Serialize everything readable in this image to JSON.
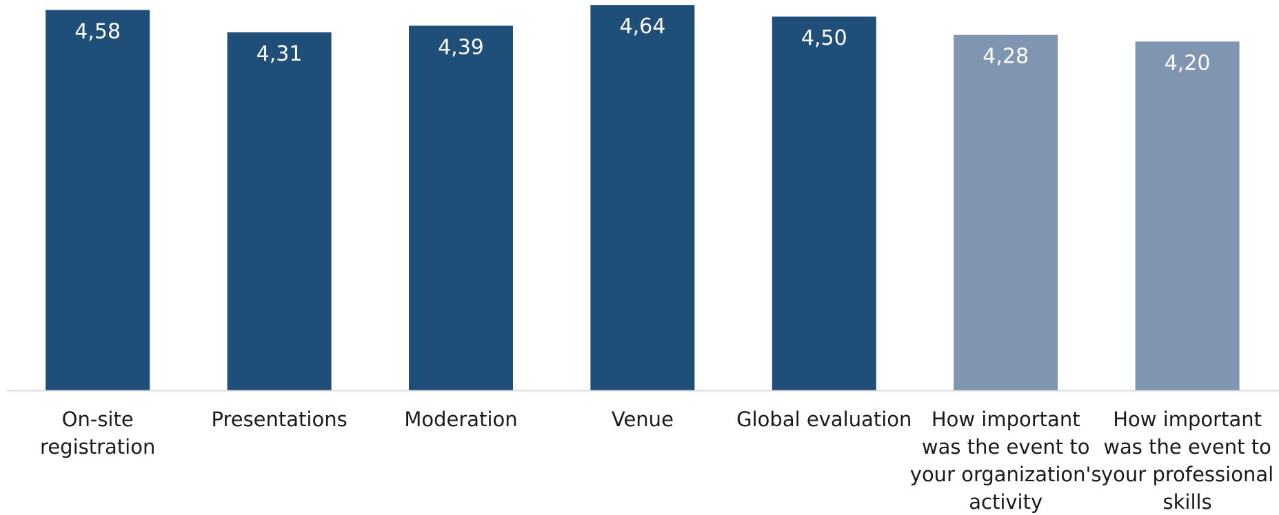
{
  "chart_data": {
    "type": "bar",
    "categories": [
      "On-site registration",
      "Presentations",
      "Moderation",
      "Venue",
      "Global evaluation",
      "How important was the event to your organization's activity",
      "How important was the event to your professional skills"
    ],
    "category_lines": [
      [
        "On-site",
        "registration"
      ],
      [
        "Presentations"
      ],
      [
        "Moderation"
      ],
      [
        "Venue"
      ],
      [
        "Global evaluation"
      ],
      [
        "How important",
        "was the event to",
        "your organization's",
        "activity"
      ],
      [
        "How important",
        "was the event to",
        "your professional",
        "skills"
      ]
    ],
    "values": [
      4.58,
      4.31,
      4.39,
      4.64,
      4.5,
      4.28,
      4.2
    ],
    "value_labels": [
      "4,58",
      "4,31",
      "4,39",
      "4,64",
      "4,50",
      "4,28",
      "4,20"
    ],
    "bar_colors": [
      "#1f4e79",
      "#1f4e79",
      "#1f4e79",
      "#1f4e79",
      "#1f4e79",
      "#8096b0",
      "#8096b0"
    ],
    "ylim": [
      0,
      4.7
    ],
    "title": "",
    "xlabel": "",
    "ylabel": "",
    "grid": false,
    "legend": "none"
  },
  "colors": {
    "axis_line": "#d9d9d9",
    "value_text": "#ffffff",
    "category_text": "#1a1a1a"
  }
}
